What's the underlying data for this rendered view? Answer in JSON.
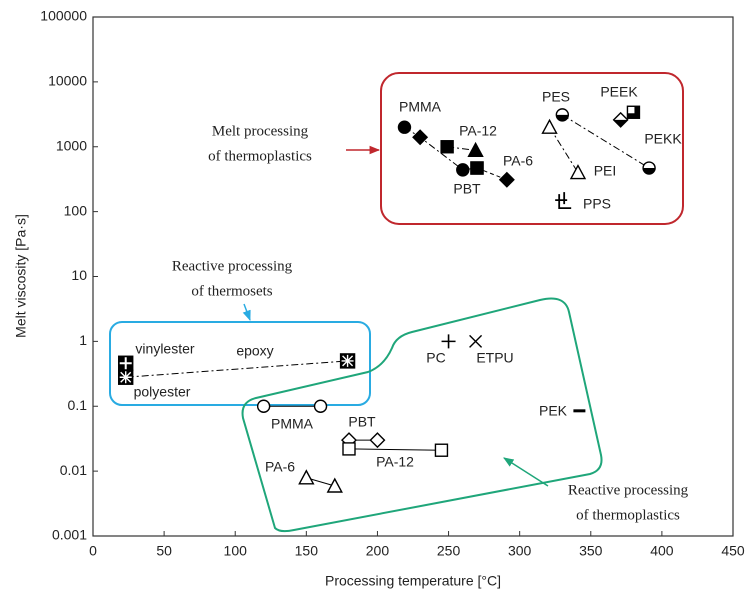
{
  "chart_data": {
    "type": "scatter",
    "log_y": true,
    "xlabel": "Processing temperature [°C]",
    "ylabel": "Melt viscosity [Pa·s]",
    "xlim": [
      0,
      450
    ],
    "xticks": [
      0,
      50,
      100,
      150,
      200,
      250,
      300,
      350,
      400,
      450
    ],
    "ylim": [
      0.001,
      100000
    ],
    "yticks": [
      0.001,
      0.01,
      0.1,
      1,
      10,
      100,
      1000,
      10000,
      100000
    ],
    "color": "#000000",
    "series": [
      {
        "line": "dashdot",
        "x": [
          219,
          230,
          260,
          270
        ],
        "values": [
          2000,
          1400,
          440,
          470
        ],
        "markers": [
          "circle-filled",
          "diamond-filled",
          "circle-filled",
          "square-filled"
        ]
      },
      {
        "line": "dashdot",
        "x": [
          249,
          269
        ],
        "values": [
          1000,
          880
        ],
        "markers": [
          "square-filled",
          "triangle-filled"
        ]
      },
      {
        "line": "dashed",
        "x": [
          270,
          291
        ],
        "values": [
          470,
          310
        ],
        "markers": [
          "square-filled",
          "diamond-filled"
        ]
      },
      {
        "line": "dashdot",
        "x": [
          321,
          341
        ],
        "values": [
          2000,
          400
        ],
        "markers": [
          "triangle",
          "triangle"
        ]
      },
      {
        "line": "dashdot",
        "x": [
          330,
          391
        ],
        "values": [
          3100,
          470
        ],
        "markers": [
          "half-circle",
          "half-circle"
        ]
      },
      {
        "line": "none",
        "x": [
          371,
          380,
          332
        ],
        "values": [
          2600,
          3400,
          140
        ],
        "markers": [
          "half-diamond",
          "half-square",
          "plus-corner"
        ]
      },
      {
        "line": "dashdot",
        "x": [
          23,
          23,
          179
        ],
        "values": [
          0.46,
          0.28,
          0.5
        ],
        "markers": [
          "plus-square",
          "asterisk-square",
          "asterisk-square"
        ]
      },
      {
        "line": "none",
        "x": [
          250,
          269,
          342
        ],
        "values": [
          1,
          1,
          0.085
        ],
        "markers": [
          "plus",
          "cross",
          "dash"
        ]
      },
      {
        "line": "solid",
        "x": [
          120,
          160
        ],
        "values": [
          0.1,
          0.1
        ],
        "markers": [
          "circle",
          "circle"
        ]
      },
      {
        "line": "solid",
        "x": [
          180,
          200
        ],
        "values": [
          0.03,
          0.03
        ],
        "markers": [
          "diamond",
          "diamond"
        ]
      },
      {
        "line": "solid",
        "x": [
          180,
          245
        ],
        "values": [
          0.022,
          0.021
        ],
        "markers": [
          "square",
          "square"
        ]
      },
      {
        "line": "solid",
        "x": [
          150,
          170
        ],
        "values": [
          0.0079,
          0.0059
        ],
        "markers": [
          "triangle",
          "triangle"
        ]
      }
    ],
    "annotations": [
      "PMMA",
      "PA-12",
      "PA-6",
      "PBT",
      "PES",
      "PEEK",
      "PEKK",
      "PEI",
      "PPS",
      "vinylester",
      "epoxy",
      "polyester",
      "PC",
      "ETPU",
      "PEK",
      "PMMA",
      "PBT",
      "PA-12",
      "PA-6"
    ],
    "group_labels": [
      [
        "Melt processing",
        "of thermoplastics"
      ],
      [
        "Reactive processing",
        "of thermosets"
      ],
      [
        "Reactive processing",
        "of thermoplastics"
      ]
    ]
  }
}
